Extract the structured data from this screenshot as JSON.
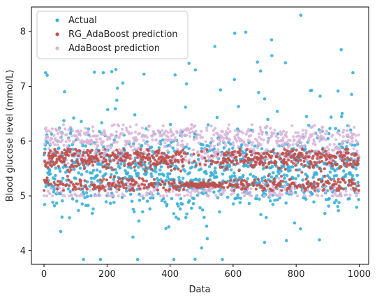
{
  "chart_data": {
    "type": "scatter",
    "xlabel": "Data",
    "ylabel": "Blood glucose level (mmol/L)",
    "xlim": [
      -40,
      1030
    ],
    "ylim": [
      3.75,
      8.45
    ],
    "xticks": [
      "0",
      "200",
      "400",
      "600",
      "800",
      "1000"
    ],
    "xtick_values": [
      0,
      200,
      400,
      600,
      800,
      1000
    ],
    "yticks": [
      "4",
      "5",
      "6",
      "7",
      "8"
    ],
    "ytick_values": [
      4,
      5,
      6,
      7,
      8
    ],
    "grid": false,
    "legend_placement": "top-left",
    "n_points": 1000,
    "series": [
      {
        "name": "Actual",
        "color": "#3bb0d9",
        "marker": "o",
        "distribution": {
          "center": 5.45,
          "spread": 0.5,
          "min": 3.84,
          "max": 8.3
        },
        "highlighted_points": [
          {
            "x": 412,
            "y": 3.84
          },
          {
            "x": 500,
            "y": 4.05
          },
          {
            "x": 700,
            "y": 4.15
          },
          {
            "x": 605,
            "y": 7.97
          },
          {
            "x": 640,
            "y": 7.99
          },
          {
            "x": 722,
            "y": 7.85
          },
          {
            "x": 815,
            "y": 8.3
          },
          {
            "x": 943,
            "y": 7.67
          },
          {
            "x": 542,
            "y": 7.73
          },
          {
            "x": 460,
            "y": 7.42
          },
          {
            "x": 480,
            "y": 7.3
          },
          {
            "x": 160,
            "y": 7.26
          },
          {
            "x": 215,
            "y": 7.27
          },
          {
            "x": 5,
            "y": 7.25
          },
          {
            "x": 980,
            "y": 7.25
          }
        ]
      },
      {
        "name": "RG_AdaBoost prediction",
        "color": "#c0504d",
        "marker": "o",
        "distribution": {
          "min": 5.1,
          "max": 5.85
        },
        "levels": [
          5.2,
          5.6,
          5.75
        ]
      },
      {
        "name": "AdaBoost prediction",
        "color": "#d8b4d8",
        "marker": "o",
        "distribution": {
          "min": 5.0,
          "max": 6.3
        },
        "levels": [
          5.1,
          5.75,
          6.0,
          6.15
        ]
      }
    ]
  }
}
